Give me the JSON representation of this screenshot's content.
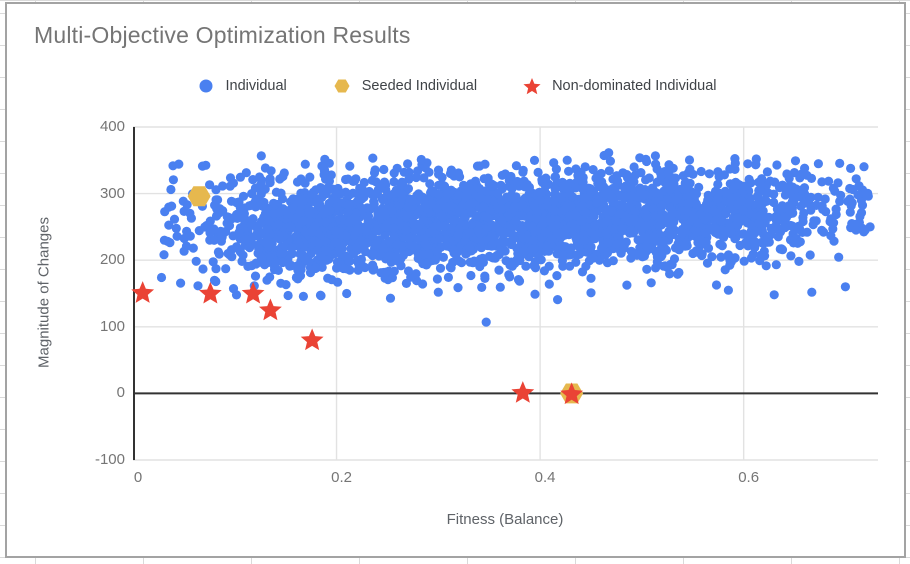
{
  "chart": {
    "title": "Multi-Objective Optimization Results",
    "title_color": "#757575",
    "frame_border_color": "#a3a3a3",
    "background": "#ffffff",
    "grid_color": "#e2e2e2",
    "axis_line_color": "#333333",
    "legend": [
      {
        "label": "Individual",
        "marker": "circle",
        "color": "#4a80f0"
      },
      {
        "label": "Seeded Individual",
        "marker": "hexagon",
        "color": "#e6b84e"
      },
      {
        "label": "Non-dominated Individual",
        "marker": "star",
        "color": "#ea4335"
      }
    ]
  },
  "chart_data": {
    "type": "scatter",
    "title": "Multi-Objective Optimization Results",
    "xlabel": "Fitness (Balance)",
    "ylabel": "Magnitude of Changes",
    "xlim": [
      0,
      0.732
    ],
    "ylim": [
      -100,
      400
    ],
    "x_ticks": [
      {
        "value": 0,
        "label": "0"
      },
      {
        "value": 0.2,
        "label": "0.2"
      },
      {
        "value": 0.4,
        "label": "0.4"
      },
      {
        "value": 0.6,
        "label": "0.6"
      }
    ],
    "y_ticks": [
      {
        "value": 400,
        "label": "400"
      },
      {
        "value": 300,
        "label": "300"
      },
      {
        "value": 200,
        "label": "200"
      },
      {
        "value": 100,
        "label": "100"
      },
      {
        "value": 0,
        "label": "0"
      },
      {
        "value": -100,
        "label": "-100"
      }
    ],
    "grid": true,
    "legend_position": "top",
    "series": [
      {
        "name": "Individual",
        "marker": "circle",
        "color": "#4a80f0",
        "point_radius": 4.6,
        "cloud": {
          "description": "dense elongated cloud of ~3000 points, x from 0.03 to 0.72, y mostly 150-360 centered near 255",
          "count": 3000,
          "seed": 1337,
          "x_cdf": [
            [
              0.03,
              0.0
            ],
            [
              0.08,
              0.015
            ],
            [
              0.12,
              0.05
            ],
            [
              0.16,
              0.11
            ],
            [
              0.2,
              0.19
            ],
            [
              0.55,
              0.83
            ],
            [
              0.62,
              0.93
            ],
            [
              0.66,
              0.97
            ],
            [
              0.725,
              1.0
            ]
          ],
          "y_mean_base": 243,
          "y_mean_slope": 42,
          "y_sigma_base": 40,
          "y_sigma_slope": -7,
          "y_clip": [
            108,
            362
          ]
        },
        "feature_points": [
          [
            0.028,
            174
          ],
          [
            0.21,
            150
          ],
          [
            0.253,
            143
          ],
          [
            0.3,
            152
          ],
          [
            0.347,
            107
          ],
          [
            0.395,
            149
          ],
          [
            0.45,
            151
          ],
          [
            0.585,
            155
          ],
          [
            0.63,
            148
          ],
          [
            0.667,
            152
          ],
          [
            0.7,
            160
          ]
        ]
      },
      {
        "name": "Seeded Individual",
        "marker": "hexagon",
        "color": "#e6b84e",
        "marker_radius": 11.5,
        "points": [
          [
            0.065,
            296
          ],
          [
            0.431,
            0
          ]
        ]
      },
      {
        "name": "Non-dominated Individual",
        "marker": "star",
        "color": "#ea4335",
        "marker_radius": 12,
        "points": [
          [
            0.0095,
            152
          ],
          [
            0.076,
            151
          ],
          [
            0.118,
            151
          ],
          [
            0.135,
            126
          ],
          [
            0.176,
            81
          ],
          [
            0.383,
            2
          ],
          [
            0.431,
            0
          ]
        ]
      }
    ]
  }
}
